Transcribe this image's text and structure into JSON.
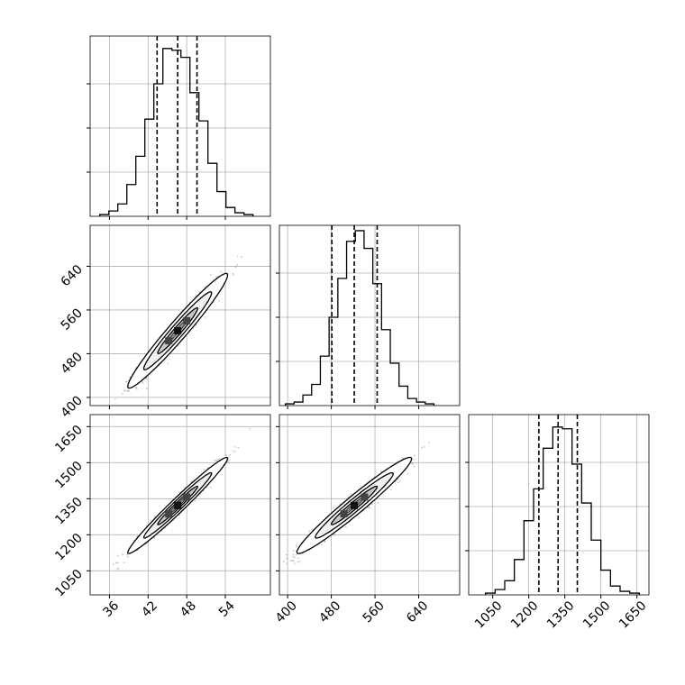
{
  "chart_data": {
    "type": "corner",
    "grid": true,
    "colors": {
      "line": "#000000",
      "grid": "#b0b0b0",
      "points": "#000000",
      "background": "#ffffff"
    },
    "params": [
      {
        "range": [
          33,
          61
        ],
        "tick_values": [
          36,
          42,
          48,
          54
        ],
        "tick_labels": [
          "36",
          "42",
          "48",
          "54"
        ]
      },
      {
        "range": [
          385,
          715
        ],
        "tick_values": [
          400,
          480,
          560,
          640
        ],
        "tick_labels": [
          "400",
          "480",
          "560",
          "640"
        ]
      },
      {
        "range": [
          950,
          1700
        ],
        "tick_values": [
          1050,
          1200,
          1350,
          1500,
          1650
        ],
        "tick_labels": [
          "1050",
          "1200",
          "1350",
          "1500",
          "1650"
        ]
      }
    ],
    "histograms": [
      {
        "param": 0,
        "bin_edges": [
          34.5,
          35.9,
          37.3,
          38.7,
          40.1,
          41.5,
          42.9,
          44.3,
          45.7,
          47.1,
          48.5,
          49.9,
          51.3,
          52.7,
          54.1,
          55.5,
          56.9,
          58.3
        ],
        "counts": [
          1,
          3,
          7,
          18,
          34,
          55,
          75,
          95,
          94,
          90,
          70,
          54,
          30,
          14,
          5,
          2,
          1
        ],
        "quantiles": [
          43.4,
          46.6,
          49.6
        ],
        "ymax": 100
      },
      {
        "param": 1,
        "bin_edges": [
          396,
          412,
          428,
          444,
          460,
          476,
          492,
          508,
          524,
          540,
          556,
          572,
          588,
          604,
          620,
          636,
          652,
          668
        ],
        "counts": [
          1,
          2,
          6,
          12,
          28,
          50,
          72,
          93,
          99,
          89,
          69,
          43,
          24,
          11,
          4,
          2,
          1
        ],
        "quantiles": [
          481,
          522,
          564
        ],
        "ymax": 100
      },
      {
        "param": 2,
        "bin_edges": [
          1020,
          1060,
          1100,
          1140,
          1180,
          1220,
          1260,
          1300,
          1340,
          1380,
          1420,
          1460,
          1500,
          1540,
          1580,
          1620,
          1660
        ],
        "counts": [
          1,
          3,
          8,
          20,
          42,
          60,
          83,
          95,
          94,
          74,
          52,
          31,
          14,
          5,
          2,
          1
        ],
        "quantiles": [
          1242,
          1322,
          1402
        ],
        "ymax": 100
      }
    ],
    "pairs": [
      {
        "x_param": 0,
        "y_param": 1,
        "mean": [
          46.6,
          522
        ],
        "sd": [
          3.1,
          42
        ],
        "corr": 0.97
      },
      {
        "x_param": 0,
        "y_param": 2,
        "mean": [
          46.6,
          1322
        ],
        "sd": [
          3.1,
          80
        ],
        "corr": 0.98
      },
      {
        "x_param": 1,
        "y_param": 2,
        "mean": [
          522,
          1322
        ],
        "sd": [
          42,
          80
        ],
        "corr": 0.97
      }
    ]
  }
}
